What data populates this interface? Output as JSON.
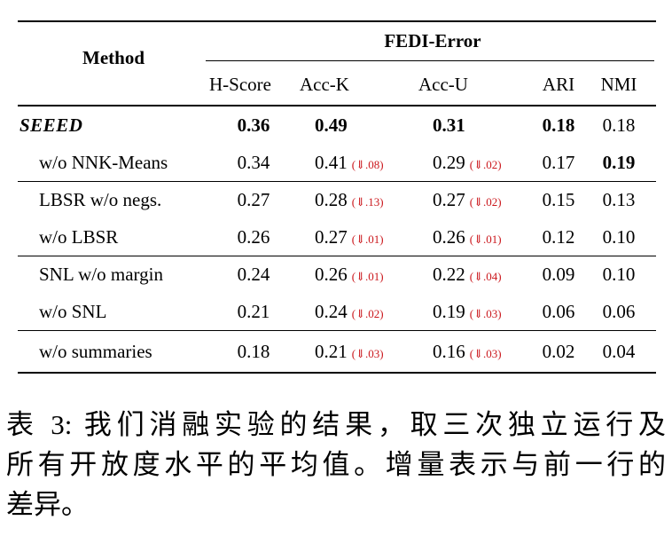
{
  "table": {
    "method_header": "Method",
    "group_header": "FEDI-Error",
    "columns": [
      "H-Score",
      "Acc-K",
      "Acc-U",
      "ARI",
      "NMI"
    ],
    "rows": [
      {
        "method": "SEEED",
        "h": "0.36",
        "k": "0.49",
        "k_delta": "",
        "u": "0.31",
        "u_delta": "",
        "ari": "0.18",
        "nmi": "0.18"
      },
      {
        "method": "w/o NNK-Means",
        "h": "0.34",
        "k": "0.41",
        "k_delta": "(⇓.08)",
        "u": "0.29",
        "u_delta": "(⇓.02)",
        "ari": "0.17",
        "nmi": "0.19"
      },
      {
        "method": "LBSR w/o negs.",
        "h": "0.27",
        "k": "0.28",
        "k_delta": "(⇓.13)",
        "u": "0.27",
        "u_delta": "(⇓.02)",
        "ari": "0.15",
        "nmi": "0.13"
      },
      {
        "method": "w/o LBSR",
        "h": "0.26",
        "k": "0.27",
        "k_delta": "(⇓.01)",
        "u": "0.26",
        "u_delta": "(⇓.01)",
        "ari": "0.12",
        "nmi": "0.10"
      },
      {
        "method": "SNL w/o margin",
        "h": "0.24",
        "k": "0.26",
        "k_delta": "(⇓.01)",
        "u": "0.22",
        "u_delta": "(⇓.04)",
        "ari": "0.09",
        "nmi": "0.10"
      },
      {
        "method": "w/o SNL",
        "h": "0.21",
        "k": "0.24",
        "k_delta": "(⇓.02)",
        "u": "0.19",
        "u_delta": "(⇓.03)",
        "ari": "0.06",
        "nmi": "0.06"
      },
      {
        "method": "w/o summaries",
        "h": "0.18",
        "k": "0.21",
        "k_delta": "(⇓.03)",
        "u": "0.16",
        "u_delta": "(⇓.03)",
        "ari": "0.02",
        "nmi": "0.04"
      }
    ]
  },
  "caption": {
    "lines": [
      "表 3: 我们消融实验的结果，取三次独立运行及",
      "所有开放度水平的平均值。增量表示与前一行的",
      "差异。"
    ]
  },
  "colors": {
    "delta_red": "#cb181d",
    "rule_black": "#000000"
  }
}
